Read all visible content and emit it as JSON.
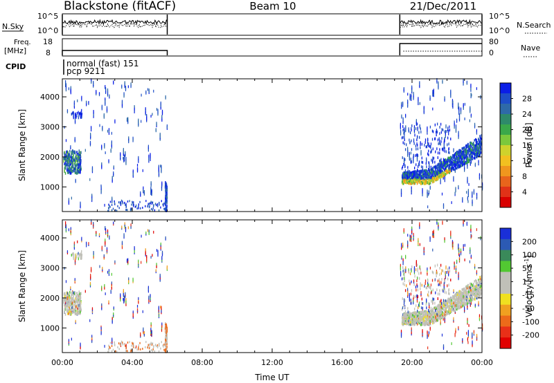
{
  "header": {
    "station": "Blackstone (fitACF)",
    "beam": "Beam 10",
    "date": "21/Dec/2011"
  },
  "panels": {
    "nsky": {
      "left_label": "N.Sky",
      "right_label": "N.Search",
      "left_ticks": [
        "10^5",
        "10^0"
      ],
      "right_ticks": [
        "10^5",
        "10^0"
      ]
    },
    "freq": {
      "left_label_1": "Freq.",
      "left_label_2": "[MHz]",
      "right_label": "Nave",
      "left_ticks": [
        "18",
        "8"
      ],
      "right_ticks": [
        "80",
        "0"
      ]
    },
    "cpid": {
      "label": "CPID",
      "mode_line_1": "normal (fast) 151",
      "mode_line_2": "pcp 9211"
    }
  },
  "colorbars": {
    "power": {
      "label": "Power [dB]",
      "ticks": [
        "28",
        "24",
        "20",
        "16",
        "12",
        "8",
        "4"
      ],
      "colors": [
        "#0a1ee6",
        "#1e4ec8",
        "#2e6aa8",
        "#2e8a6a",
        "#3aa84a",
        "#7cc83c",
        "#cfd22c",
        "#f2c020",
        "#f0961e",
        "#e8641c",
        "#e03218",
        "#d80000"
      ]
    },
    "velocity": {
      "label": "Velocity [m s",
      "label_sup": "-1",
      "label_end": "]",
      "ticks": [
        "200",
        "100",
        "50",
        "15",
        "-15",
        "-50",
        "-100",
        "-200"
      ],
      "colors": [
        "#1a2fd8",
        "#2c5ab4",
        "#3a8a5a",
        "#52c832",
        "#c0c0b8",
        "#c0c0b8",
        "#f0e020",
        "#f0a020",
        "#ec6a1a",
        "#e83018",
        "#e00000"
      ]
    }
  },
  "chart_data": [
    {
      "type": "heatmap",
      "name": "Power",
      "ylabel": "Slant Range [km]",
      "xlabel": "",
      "ylim": [
        180,
        4600
      ],
      "yticks": [
        1000,
        2000,
        3000,
        4000
      ],
      "xlim": [
        0,
        24
      ],
      "colorbar_range": [
        0,
        32
      ],
      "segments": [
        {
          "start": 0,
          "end": 6
        },
        {
          "start": 19.3,
          "end": 24
        }
      ]
    },
    {
      "type": "heatmap",
      "name": "Velocity",
      "ylabel": "Slant Range [km]",
      "xlabel": "Time UT",
      "ylim": [
        180,
        4600
      ],
      "yticks": [
        1000,
        2000,
        3000,
        4000
      ],
      "xlim": [
        0,
        24
      ],
      "xticks": [
        "00:00",
        "04:00",
        "08:00",
        "12:00",
        "16:00",
        "20:00",
        "00:00"
      ],
      "colorbar_range": [
        -250,
        250
      ]
    }
  ]
}
